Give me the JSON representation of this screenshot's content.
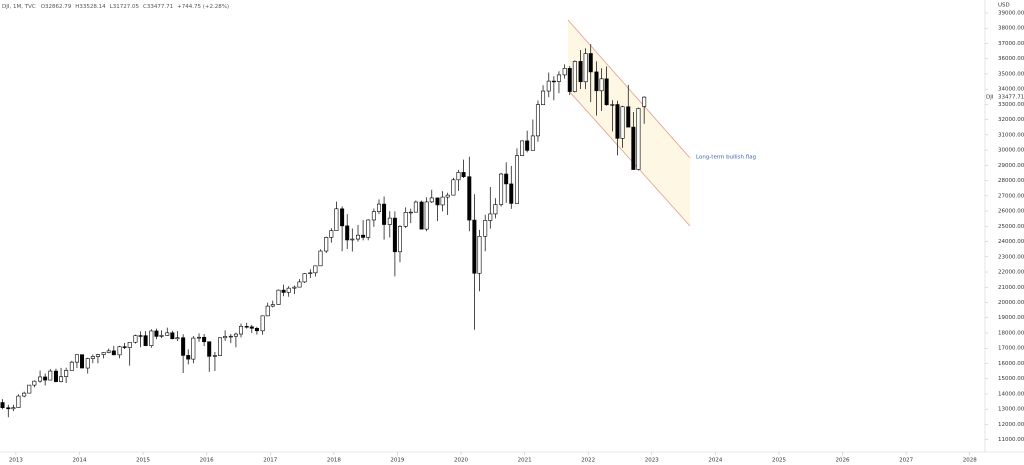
{
  "header": {
    "symbol": "DJI, 1M, TVC",
    "ohlc_prefixes": [
      "O",
      "H",
      "L",
      "C"
    ],
    "change": "+744.75 (+2.28%)"
  },
  "chart_data": {
    "type": "candlestick",
    "currency": "USD",
    "price_label": "DJI",
    "annotation": "Long-term bullish flag",
    "up_color": "#ffffff",
    "down_color": "#000000",
    "wick_color": "#000000",
    "xlim": [
      2012.75,
      2028.24
    ],
    "xticks": [
      2013,
      2014,
      2015,
      2016,
      2017,
      2018,
      2019,
      2020,
      2021,
      2022,
      2023,
      2024,
      2025,
      2026,
      2027,
      2028
    ],
    "ylim": [
      10190,
      39850
    ],
    "yticks": [
      {
        "value": 39000,
        "label": "39000.00"
      },
      {
        "value": 38000,
        "label": "38000.00"
      },
      {
        "value": 37000,
        "label": "37000.00"
      },
      {
        "value": 36000,
        "label": "36000.00"
      },
      {
        "value": 35000,
        "label": "35000.00"
      },
      {
        "value": 34000,
        "label": "34000.00"
      },
      {
        "value": 33000,
        "label": "33000.00"
      },
      {
        "value": 32000,
        "label": "32000.00"
      },
      {
        "value": 31000,
        "label": "31000.00"
      },
      {
        "value": 30000,
        "label": "30000.00"
      },
      {
        "value": 29000,
        "label": "29000.00"
      },
      {
        "value": 28000,
        "label": "28000.00"
      },
      {
        "value": 27000,
        "label": "27000.00"
      },
      {
        "value": 26000,
        "label": "26000.00"
      },
      {
        "value": 25000,
        "label": "25000.00"
      },
      {
        "value": 24000,
        "label": "24000.00"
      },
      {
        "value": 23000,
        "label": "23000.00"
      },
      {
        "value": 22000,
        "label": "22000.00"
      },
      {
        "value": 21000,
        "label": "21000.00"
      },
      {
        "value": 20000,
        "label": "20000.00"
      },
      {
        "value": 19000,
        "label": "19000.00"
      },
      {
        "value": 18000,
        "label": "18000.00"
      },
      {
        "value": 17000,
        "label": "17000.00"
      },
      {
        "value": 16000,
        "label": "16000.00"
      },
      {
        "value": 15000,
        "label": "15000.00"
      },
      {
        "value": 14000,
        "label": "14000.00"
      },
      {
        "value": 13000,
        "label": "13000.00"
      },
      {
        "value": 12000,
        "label": "12000.00"
      },
      {
        "value": 11000,
        "label": "11000.00"
      }
    ],
    "x": [
      2012.79,
      2012.88,
      2012.96,
      2013.04,
      2013.13,
      2013.21,
      2013.29,
      2013.38,
      2013.46,
      2013.54,
      2013.63,
      2013.71,
      2013.79,
      2013.88,
      2013.96,
      2014.04,
      2014.13,
      2014.21,
      2014.29,
      2014.38,
      2014.46,
      2014.54,
      2014.63,
      2014.71,
      2014.79,
      2014.88,
      2014.96,
      2015.04,
      2015.13,
      2015.21,
      2015.29,
      2015.38,
      2015.46,
      2015.54,
      2015.63,
      2015.71,
      2015.79,
      2015.88,
      2015.96,
      2016.04,
      2016.13,
      2016.21,
      2016.29,
      2016.38,
      2016.46,
      2016.54,
      2016.63,
      2016.71,
      2016.79,
      2016.88,
      2016.96,
      2017.04,
      2017.13,
      2017.21,
      2017.29,
      2017.38,
      2017.46,
      2017.54,
      2017.63,
      2017.71,
      2017.79,
      2017.88,
      2017.96,
      2018.04,
      2018.13,
      2018.21,
      2018.29,
      2018.38,
      2018.46,
      2018.54,
      2018.63,
      2018.71,
      2018.79,
      2018.88,
      2018.96,
      2019.04,
      2019.13,
      2019.21,
      2019.29,
      2019.38,
      2019.46,
      2019.54,
      2019.63,
      2019.71,
      2019.79,
      2019.88,
      2019.96,
      2020.04,
      2020.13,
      2020.21,
      2020.29,
      2020.38,
      2020.46,
      2020.54,
      2020.63,
      2020.71,
      2020.79,
      2020.88,
      2020.96,
      2021.04,
      2021.13,
      2021.21,
      2021.29,
      2021.38,
      2021.46,
      2021.54,
      2021.63,
      2021.71,
      2021.79,
      2021.88,
      2021.96,
      2022.04,
      2022.13,
      2022.21,
      2022.29,
      2022.38,
      2022.46,
      2022.54,
      2022.63,
      2022.71,
      2022.79,
      2022.88
    ],
    "open": [
      13437,
      13096,
      13025,
      13104,
      13861,
      14054,
      14579,
      14840,
      15116,
      14910,
      15500,
      14810,
      15130,
      15546,
      16086,
      16577,
      15699,
      16322,
      16458,
      16581,
      16717,
      16827,
      16563,
      17098,
      17043,
      17391,
      17828,
      17823,
      17165,
      18133,
      17776,
      17841,
      18011,
      17620,
      17690,
      16528,
      16285,
      17664,
      17720,
      17425,
      16466,
      16517,
      17685,
      17774,
      17787,
      17930,
      18432,
      18401,
      18308,
      18142,
      19124,
      19763,
      19864,
      20812,
      20663,
      20941,
      21009,
      21350,
      21891,
      21948,
      22405,
      23377,
      24272,
      24719,
      26149,
      25029,
      24103,
      24163,
      24416,
      24271,
      25415,
      25965,
      26458,
      25116,
      25538,
      23327,
      24999,
      25916,
      25929,
      26593,
      24815,
      26600,
      26864,
      26403,
      26917,
      27046,
      28051,
      28538,
      28256,
      25409,
      21917,
      24346,
      25383,
      25813,
      26428,
      28430,
      27782,
      26502,
      29639,
      30606,
      29983,
      30932,
      32982,
      33875,
      34529,
      34503,
      34935,
      35361,
      33844,
      35820,
      34484,
      36338,
      35132,
      33893,
      34678,
      32977,
      32990,
      30775,
      32845,
      31510,
      28726,
      32862.79
    ],
    "high": [
      13662,
      13290,
      13290,
      13969,
      14149,
      14586,
      14888,
      15542,
      15340,
      15634,
      15658,
      15710,
      15722,
      16174,
      16588,
      16589,
      16376,
      16588,
      16631,
      16736,
      16978,
      17151,
      17153,
      17350,
      17395,
      17895,
      18103,
      18121,
      18244,
      18288,
      18175,
      18351,
      18137,
      18121,
      17916,
      16933,
      17799,
      17978,
      17929,
      17425,
      16752,
      17716,
      18168,
      17934,
      18017,
      18623,
      18668,
      18534,
      18400,
      19152,
      19987,
      20126,
      20851,
      21169,
      21070,
      21113,
      21535,
      21929,
      22179,
      22420,
      23485,
      24327,
      24876,
      26617,
      26307,
      25800,
      24858,
      25087,
      25402,
      25462,
      26167,
      26770,
      26952,
      25990,
      25980,
      25076,
      26242,
      26156,
      26696,
      26686,
      26907,
      27399,
      26864,
      27306,
      27202,
      28175,
      28702,
      29374,
      29568,
      27102,
      24764,
      25758,
      27580,
      26841,
      28502,
      29199,
      28958,
      30116,
      30637,
      31272,
      32010,
      33259,
      34257,
      35091,
      34849,
      35171,
      35631,
      35510,
      35892,
      36565,
      36680,
      36952,
      35824,
      35372,
      35492,
      33272,
      33236,
      32910,
      34281,
      32504,
      32785,
      33528.14
    ],
    "low": [
      12993,
      12471,
      12884,
      13104,
      13784,
      14054,
      14434,
      14746,
      14551,
      14910,
      14761,
      14760,
      14720,
      15546,
      15703,
      15699,
      15340,
      16015,
      16015,
      16334,
      16674,
      16563,
      16333,
      16946,
      15855,
      17311,
      17067,
      17136,
      17037,
      17585,
      17660,
      17816,
      17591,
      17465,
      15370,
      15942,
      16013,
      17421,
      17139,
      15450,
      15503,
      16510,
      17484,
      17331,
      17063,
      17713,
      18289,
      18001,
      17888,
      17884,
      19099,
      19677,
      19832,
      20412,
      20379,
      20554,
      20997,
      21279,
      21600,
      21709,
      22416,
      23242,
      23921,
      24741,
      23360,
      23509,
      23345,
      23997,
      24076,
      24084,
      24965,
      25790,
      24123,
      24268,
      21713,
      22638,
      24883,
      25208,
      25960,
      24815,
      24680,
      26530,
      25339,
      25978,
      25743,
      27046,
      27326,
      28170,
      24681,
      18214,
      20735,
      23361,
      24843,
      25524,
      26288,
      26537,
      26143,
      26502,
      29602,
      29856,
      29983,
      30547,
      32982,
      33474,
      33271,
      33742,
      34690,
      33613,
      33785,
      34006,
      34006,
      33150,
      32272,
      32578,
      32913,
      31228,
      29653,
      30144,
      31510,
      28715,
      28660,
      31727.05
    ],
    "close": [
      13096,
      13025,
      13104,
      13861,
      14054,
      14579,
      14840,
      15116,
      14910,
      15500,
      14810,
      15130,
      15546,
      16086,
      16577,
      15699,
      16322,
      16458,
      16581,
      16717,
      16827,
      16563,
      17098,
      17043,
      17391,
      17828,
      17823,
      17165,
      18133,
      17776,
      17841,
      18011,
      17620,
      17690,
      16528,
      16285,
      17664,
      17720,
      17425,
      16466,
      16517,
      17685,
      17774,
      17787,
      17930,
      18432,
      18401,
      18308,
      18142,
      19124,
      19763,
      19864,
      20812,
      20663,
      20941,
      21009,
      21350,
      21891,
      21948,
      22405,
      23377,
      24272,
      24719,
      26149,
      25029,
      24103,
      24163,
      24416,
      24271,
      25415,
      25965,
      26458,
      25116,
      25538,
      23327,
      24999,
      25916,
      25929,
      26593,
      24815,
      26600,
      26864,
      26403,
      26917,
      27046,
      28051,
      28538,
      28256,
      25409,
      21917,
      24346,
      25383,
      25813,
      26428,
      28430,
      27782,
      26502,
      29639,
      30606,
      29983,
      30932,
      32982,
      33875,
      34529,
      34503,
      34935,
      35361,
      33844,
      35820,
      34484,
      36338,
      35132,
      33893,
      34678,
      32977,
      32990,
      30775,
      32845,
      31510,
      28726,
      32733,
      33477.71
    ]
  }
}
